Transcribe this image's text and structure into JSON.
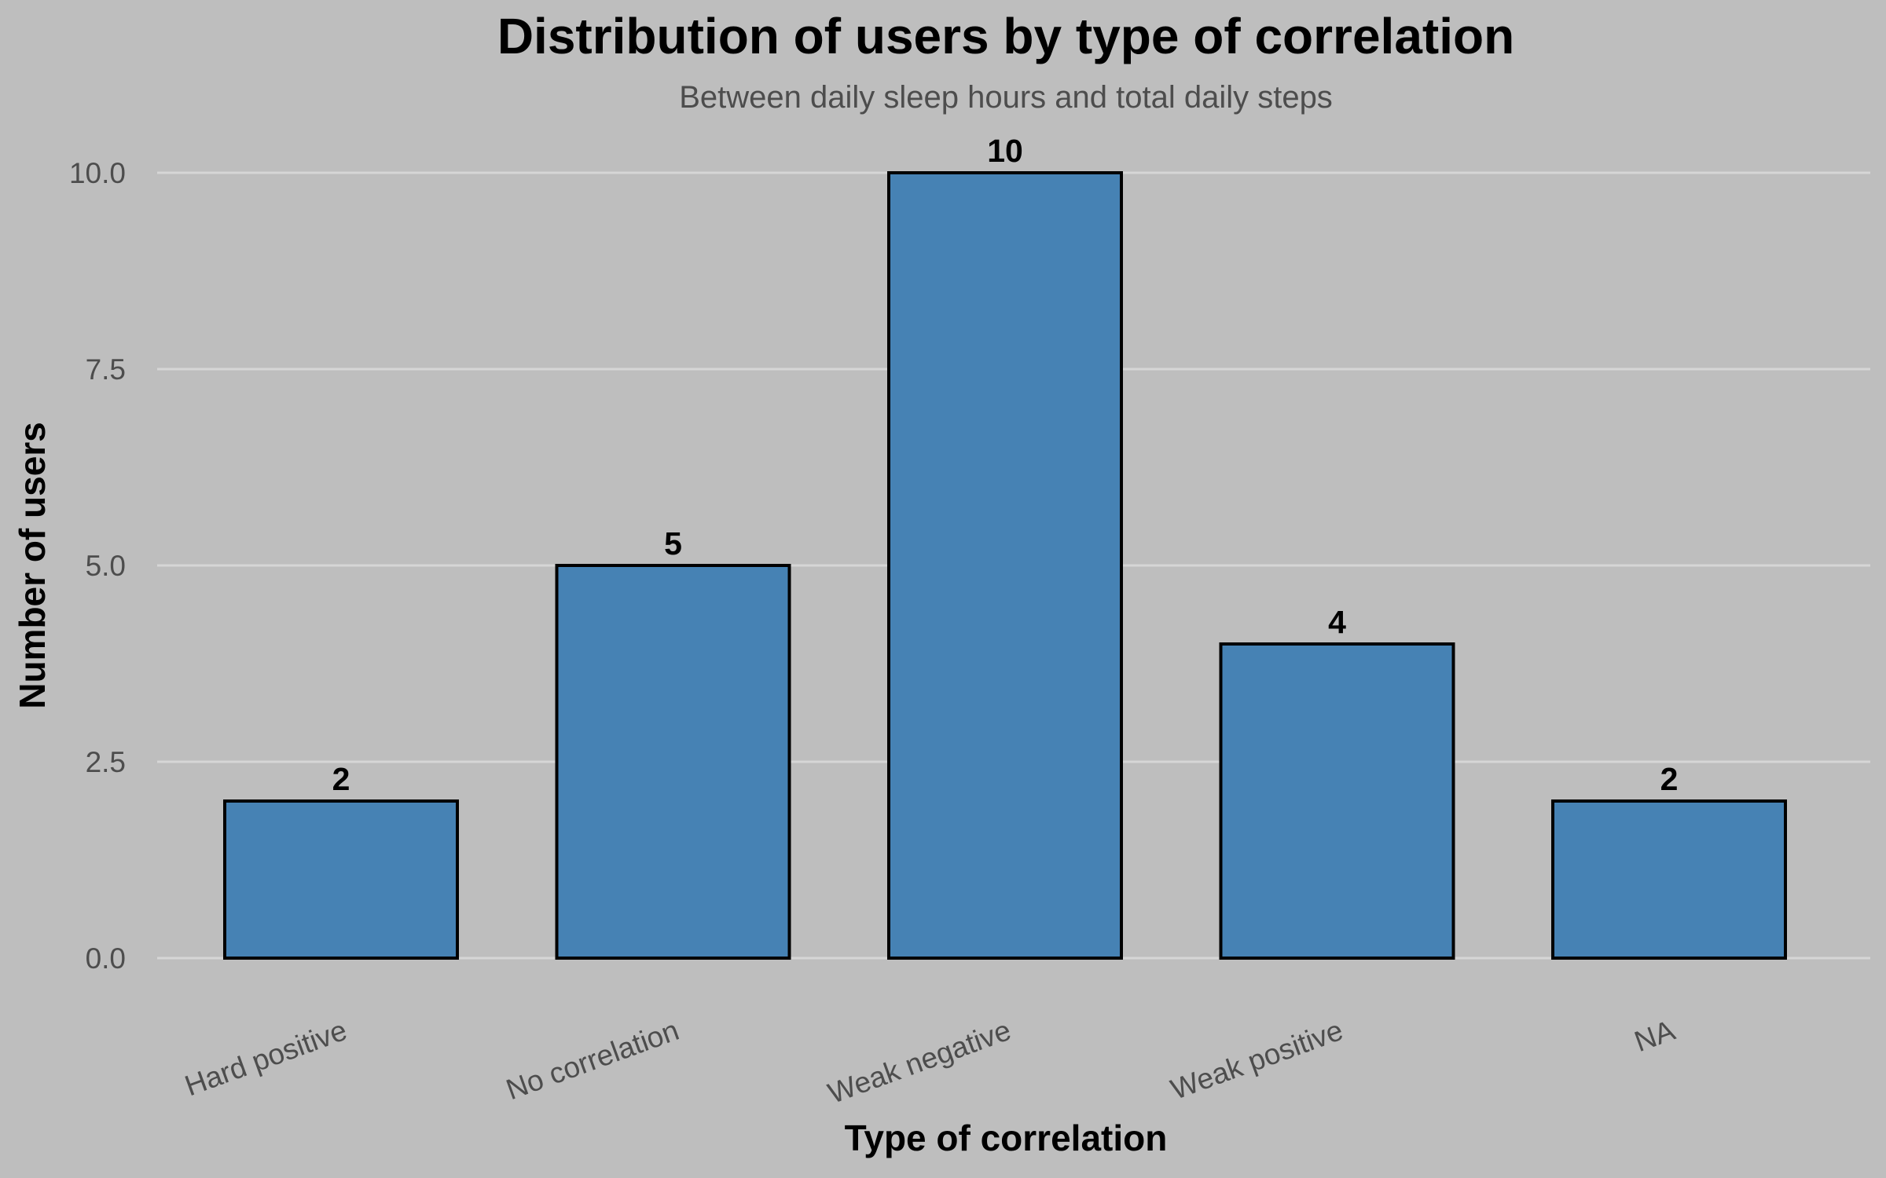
{
  "chart_data": {
    "type": "bar",
    "title": "Distribution of users by type of correlation",
    "subtitle": "Between daily sleep hours and total daily steps",
    "xlabel": "Type of correlation",
    "ylabel": "Number of users",
    "categories": [
      "Hard positive",
      "No correlation",
      "Weak negative",
      "Weak positive",
      "NA"
    ],
    "values": [
      2,
      5,
      10,
      4,
      2
    ],
    "data_labels": [
      "2",
      "5",
      "10",
      "4",
      "2"
    ],
    "ylim": [
      0,
      10
    ],
    "yticks": [
      0,
      2.5,
      5,
      7.5,
      10
    ],
    "ytick_labels": [
      "0.0",
      "2.5",
      "5.0",
      "7.5",
      "10.0"
    ],
    "grid": true,
    "legend": "none",
    "colors": {
      "bar_fill": "#4682b4",
      "bar_outline": "#000000",
      "background": "#bebebe",
      "grid": "#d6d6d6"
    }
  }
}
